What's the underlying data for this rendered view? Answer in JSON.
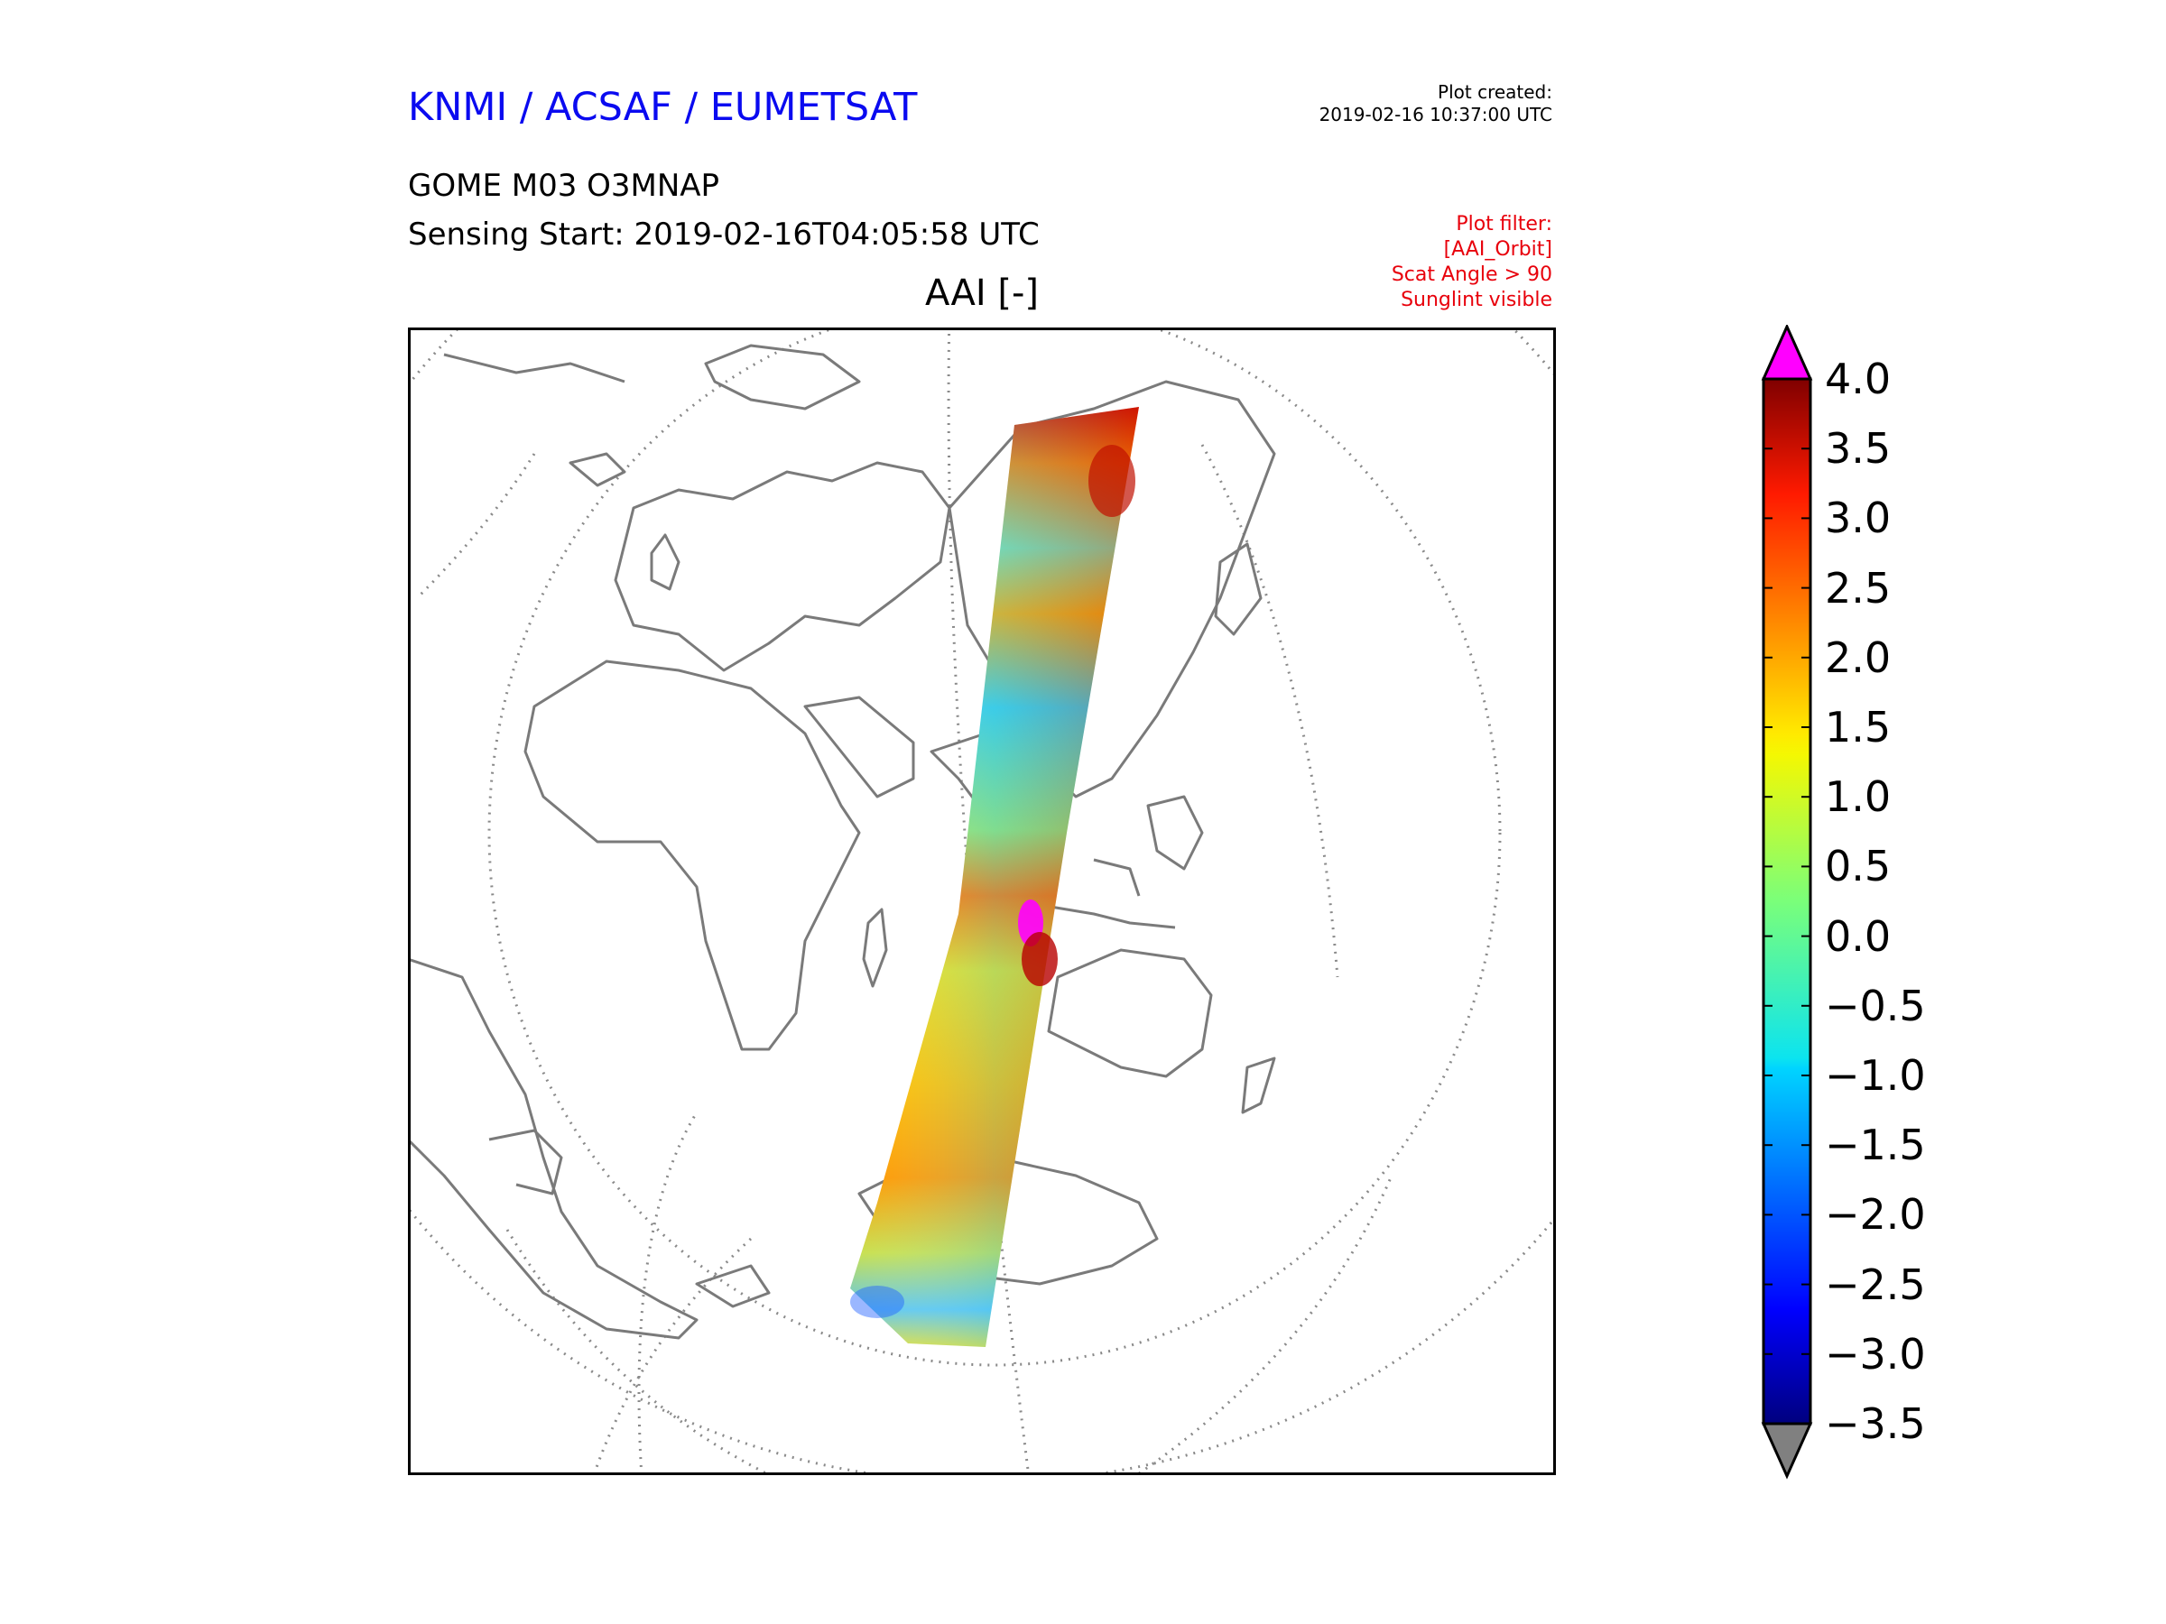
{
  "header": {
    "organization": "KNMI / ACSAF / EUMETSAT",
    "plot_created_label": "Plot created:",
    "plot_created_time": "2019-02-16 10:37:00 UTC",
    "product": "GOME M03 O3MNAP",
    "sensing_start": "Sensing Start: 2019-02-16T04:05:58 UTC",
    "filter_lines": [
      "Plot filter:",
      "[AAI_Orbit]",
      "Scat Angle > 90",
      "Sunglint visible"
    ],
    "plot_title": "AAI [-]"
  },
  "colorbar": {
    "min": -3.5,
    "max": 4.0,
    "ticks": [
      "4.0",
      "3.5",
      "3.0",
      "2.5",
      "2.0",
      "1.5",
      "1.0",
      "0.5",
      "0.0",
      "−0.5",
      "−1.0",
      "−1.5",
      "−2.0",
      "−2.5",
      "−3.0",
      "−3.5"
    ],
    "tick_values": [
      4.0,
      3.5,
      3.0,
      2.5,
      2.0,
      1.5,
      1.0,
      0.5,
      0.0,
      -0.5,
      -1.0,
      -1.5,
      -2.0,
      -2.5,
      -3.0,
      -3.5
    ],
    "over_color": "#ff00ff",
    "under_color": "#808080",
    "colormap": "jet"
  },
  "colors": {
    "org_blue": "#0a0af0",
    "filter_red": "#e8000b",
    "coastline": "#7a7a7a"
  }
}
